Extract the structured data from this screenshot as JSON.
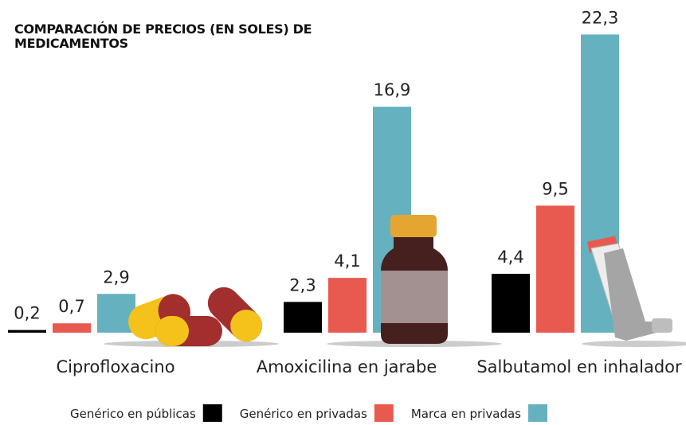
{
  "chart_data": {
    "type": "bar",
    "title": "COMPARACIÓN DE PRECIOS (EN SOLES) DE MEDICAMENTOS",
    "categories": [
      "Ciprofloxacino",
      "Amoxicilina en jarabe",
      "Salbutamol en inhalador"
    ],
    "series": [
      {
        "name": "Genérico en públicas",
        "color": "#000000",
        "values": [
          0.2,
          2.3,
          4.4
        ],
        "value_labels": [
          "0,2",
          "2,3",
          "4,4"
        ]
      },
      {
        "name": "Genérico en privadas",
        "color": "#e85a4f",
        "values": [
          0.7,
          4.1,
          9.5
        ],
        "value_labels": [
          "0,7",
          "4,1",
          "9,5"
        ]
      },
      {
        "name": "Marca en privadas",
        "color": "#66b1bf",
        "values": [
          2.9,
          16.9,
          22.3
        ],
        "value_labels": [
          "2,9",
          "16,9",
          "22,3"
        ]
      }
    ]
  }
}
